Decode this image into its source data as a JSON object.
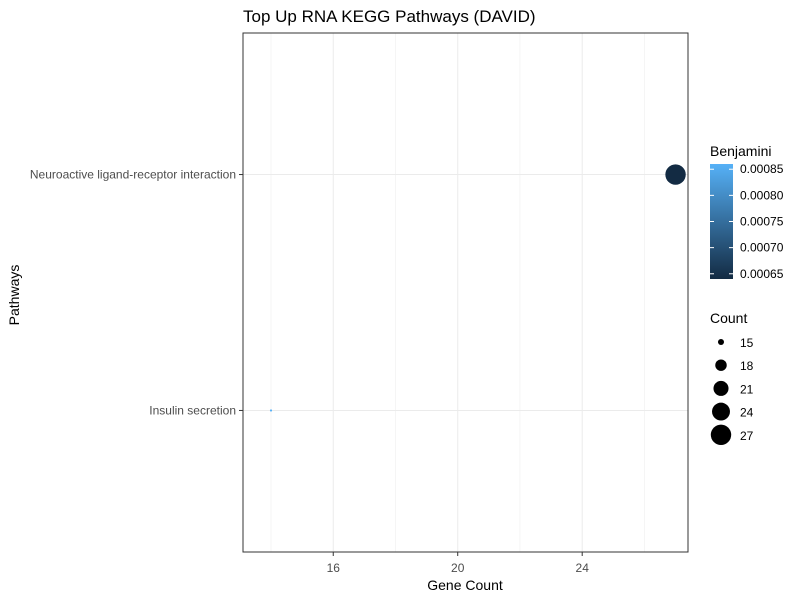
{
  "chart_data": {
    "type": "scatter",
    "title": "Top Up RNA KEGG Pathways (DAVID)",
    "xlabel": "Gene Count",
    "ylabel": "Pathways",
    "xlim": [
      13.1,
      27.4
    ],
    "x_ticks": [
      "16",
      "20",
      "24"
    ],
    "x_tick_values": [
      16,
      20,
      24
    ],
    "categories": [
      "Insulin secretion",
      "Neuroactive ligand-receptor interaction"
    ],
    "points": [
      {
        "pathway": "Neuroactive ligand-receptor interaction",
        "count": 27,
        "benjamini": 0.00064
      },
      {
        "pathway": "Insulin secretion",
        "count": 14,
        "benjamini": 0.00086
      }
    ],
    "grid": true,
    "legend_placement": "right",
    "color_legend": {
      "title": "Benjamini",
      "min": 0.00064,
      "max": 0.00086,
      "low_color": "#132B43",
      "high_color": "#56B1F7",
      "ticks": [
        "0.00085",
        "0.00080",
        "0.00075",
        "0.00070",
        "0.00065"
      ],
      "tick_values": [
        0.00085,
        0.0008,
        0.00075,
        0.0007,
        0.00065
      ]
    },
    "size_legend": {
      "title": "Count",
      "entries": [
        "15",
        "18",
        "21",
        "24",
        "27"
      ],
      "entry_values": [
        15,
        18,
        21,
        24,
        27
      ],
      "size_range": [
        14,
        27
      ]
    }
  }
}
